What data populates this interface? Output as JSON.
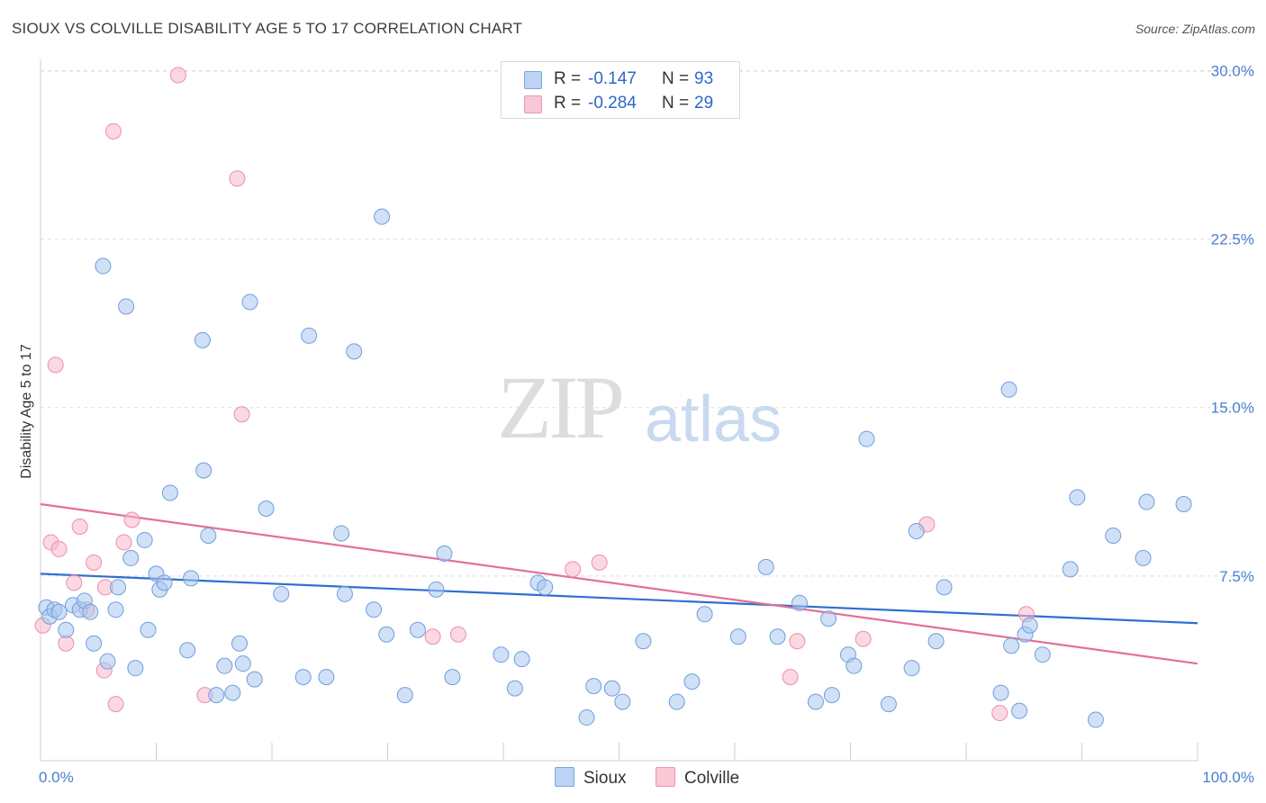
{
  "header": {
    "title": "SIOUX VS COLVILLE DISABILITY AGE 5 TO 17 CORRELATION CHART",
    "source": "Source: ZipAtlas.com"
  },
  "watermark": {
    "zip": "ZIP",
    "atlas": "atlas"
  },
  "legend": {
    "rows": [
      {
        "r_label": "R =",
        "r_value": "-0.147",
        "n_label": "N =",
        "n_value": "93"
      },
      {
        "r_label": "R =",
        "r_value": "-0.284",
        "n_label": "N =",
        "n_value": "29"
      }
    ]
  },
  "bottom_legend": {
    "sioux": "Sioux",
    "colville": "Colville"
  },
  "chart_data": {
    "type": "scatter",
    "title": "SIOUX VS COLVILLE DISABILITY AGE 5 TO 17 CORRELATION CHART",
    "ylabel": "Disability Age 5 to 17",
    "xlabel": "",
    "xlim": [
      0,
      100
    ],
    "ylim": [
      0,
      30.5
    ],
    "y_ticks": [
      7.5,
      15.0,
      22.5,
      30.0
    ],
    "y_tick_labels": [
      "7.5%",
      "15.0%",
      "22.5%",
      "30.0%"
    ],
    "x_tick_labels": [
      "0.0%",
      "100.0%"
    ],
    "grid": true,
    "legend_position": "top-center",
    "colors": {
      "sioux_fill": "#a9c6ef",
      "sioux_stroke": "#6f9fdc",
      "sioux_line": "#2f6fcf",
      "colville_fill": "#f7b8cb",
      "colville_stroke": "#ea8fab",
      "colville_line": "#e4709a",
      "grid": "#dedede",
      "axis_text": "#4a7fd0"
    },
    "series": [
      {
        "name": "Sioux",
        "trend": {
          "x": [
            0,
            100
          ],
          "y": [
            7.6,
            5.4
          ]
        },
        "points": [
          [
            0.5,
            6.1
          ],
          [
            0.8,
            5.7
          ],
          [
            1.2,
            6.0
          ],
          [
            1.6,
            5.9
          ],
          [
            2.2,
            5.1
          ],
          [
            2.8,
            6.2
          ],
          [
            3.4,
            6.0
          ],
          [
            3.8,
            6.4
          ],
          [
            4.3,
            5.9
          ],
          [
            4.6,
            4.5
          ],
          [
            5.8,
            3.7
          ],
          [
            6.5,
            6.0
          ],
          [
            6.7,
            7.0
          ],
          [
            7.8,
            8.3
          ],
          [
            8.2,
            3.4
          ],
          [
            9.0,
            9.1
          ],
          [
            9.3,
            5.1
          ],
          [
            10.0,
            7.6
          ],
          [
            10.3,
            6.9
          ],
          [
            10.7,
            7.2
          ],
          [
            11.2,
            11.2
          ],
          [
            12.7,
            4.2
          ],
          [
            13.0,
            7.4
          ],
          [
            14.1,
            12.2
          ],
          [
            14.5,
            9.3
          ],
          [
            15.2,
            2.2
          ],
          [
            15.9,
            3.5
          ],
          [
            16.6,
            2.3
          ],
          [
            17.2,
            4.5
          ],
          [
            17.5,
            3.6
          ],
          [
            18.5,
            2.9
          ],
          [
            19.5,
            10.5
          ],
          [
            20.8,
            6.7
          ],
          [
            22.7,
            3.0
          ],
          [
            24.7,
            3.0
          ],
          [
            26.0,
            9.4
          ],
          [
            26.3,
            6.7
          ],
          [
            28.8,
            6.0
          ],
          [
            29.9,
            4.9
          ],
          [
            31.5,
            2.2
          ],
          [
            32.6,
            5.1
          ],
          [
            34.2,
            6.9
          ],
          [
            34.9,
            8.5
          ],
          [
            35.6,
            3.0
          ],
          [
            39.8,
            4.0
          ],
          [
            41.0,
            2.5
          ],
          [
            41.6,
            3.8
          ],
          [
            43.0,
            7.2
          ],
          [
            43.6,
            7.0
          ],
          [
            47.2,
            1.2
          ],
          [
            47.8,
            2.6
          ],
          [
            49.4,
            2.5
          ],
          [
            50.3,
            1.9
          ],
          [
            52.1,
            4.6
          ],
          [
            55.0,
            1.9
          ],
          [
            56.3,
            2.8
          ],
          [
            57.4,
            5.8
          ],
          [
            60.3,
            4.8
          ],
          [
            62.7,
            7.9
          ],
          [
            63.7,
            4.8
          ],
          [
            65.6,
            6.3
          ],
          [
            67.0,
            1.9
          ],
          [
            68.1,
            5.6
          ],
          [
            68.4,
            2.2
          ],
          [
            69.8,
            4.0
          ],
          [
            70.3,
            3.5
          ],
          [
            71.4,
            13.6
          ],
          [
            73.3,
            1.8
          ],
          [
            75.3,
            3.4
          ],
          [
            75.7,
            9.5
          ],
          [
            77.4,
            4.6
          ],
          [
            78.1,
            7.0
          ],
          [
            83.0,
            2.3
          ],
          [
            83.7,
            15.8
          ],
          [
            83.9,
            4.4
          ],
          [
            84.6,
            1.5
          ],
          [
            85.1,
            4.9
          ],
          [
            85.5,
            5.3
          ],
          [
            86.6,
            4.0
          ],
          [
            89.0,
            7.8
          ],
          [
            89.6,
            11.0
          ],
          [
            91.2,
            1.1
          ],
          [
            92.7,
            9.3
          ],
          [
            95.3,
            8.3
          ],
          [
            95.6,
            10.8
          ],
          [
            98.8,
            10.7
          ],
          [
            5.4,
            21.3
          ],
          [
            7.4,
            19.5
          ],
          [
            14.0,
            18.0
          ],
          [
            18.1,
            19.7
          ],
          [
            23.2,
            18.2
          ],
          [
            27.1,
            17.5
          ],
          [
            29.5,
            23.5
          ]
        ]
      },
      {
        "name": "Colville",
        "trend": {
          "x": [
            0,
            100
          ],
          "y": [
            10.7,
            3.6
          ]
        },
        "points": [
          [
            0.2,
            5.3
          ],
          [
            0.9,
            9.0
          ],
          [
            1.3,
            16.9
          ],
          [
            1.6,
            8.7
          ],
          [
            2.2,
            4.5
          ],
          [
            2.9,
            7.2
          ],
          [
            3.4,
            9.7
          ],
          [
            4.0,
            6.0
          ],
          [
            4.6,
            8.1
          ],
          [
            5.5,
            3.3
          ],
          [
            5.6,
            7.0
          ],
          [
            6.3,
            27.3
          ],
          [
            6.5,
            1.8
          ],
          [
            7.2,
            9.0
          ],
          [
            7.9,
            10.0
          ],
          [
            11.9,
            29.8
          ],
          [
            14.2,
            2.2
          ],
          [
            17.0,
            25.2
          ],
          [
            17.4,
            14.7
          ],
          [
            33.9,
            4.8
          ],
          [
            36.1,
            4.9
          ],
          [
            46.0,
            7.8
          ],
          [
            48.3,
            8.1
          ],
          [
            64.8,
            3.0
          ],
          [
            65.4,
            4.6
          ],
          [
            71.1,
            4.7
          ],
          [
            76.6,
            9.8
          ],
          [
            82.9,
            1.4
          ],
          [
            85.2,
            5.8
          ]
        ]
      }
    ]
  }
}
